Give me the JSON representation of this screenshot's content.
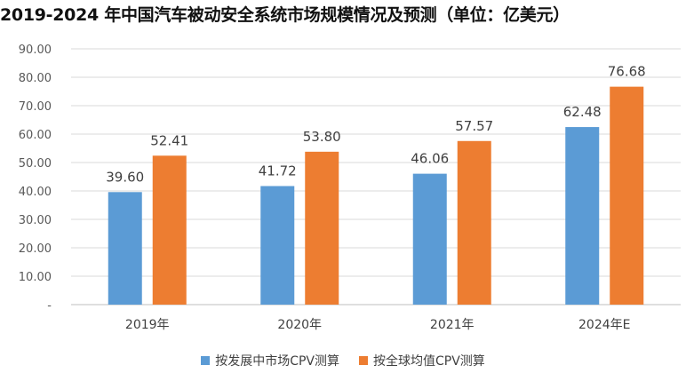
{
  "title": "2019-2024 年中国汽车被动安全系统市场规模情况及预测（单位：亿美元）",
  "colors": {
    "series1": "#5b9bd5",
    "series2": "#ed7d31",
    "grid": "#d9d9d9",
    "axis": "#bfbfbf"
  },
  "chart_data": {
    "type": "bar",
    "categories": [
      "2019年",
      "2020年",
      "2021年",
      "2024年E"
    ],
    "series": [
      {
        "name": "按发展中市场CPV测算",
        "values": [
          39.6,
          41.72,
          46.06,
          62.48
        ]
      },
      {
        "name": "按全球均值CPV测算",
        "values": [
          52.41,
          53.8,
          57.57,
          76.68
        ]
      }
    ],
    "ylim": [
      0,
      90
    ],
    "yticks": [
      "-",
      "10.00",
      "20.00",
      "30.00",
      "40.00",
      "50.00",
      "60.00",
      "70.00",
      "80.00",
      "90.00"
    ],
    "value_labels": [
      [
        "39.60",
        "41.72",
        "46.06",
        "62.48"
      ],
      [
        "52.41",
        "53.80",
        "57.57",
        "76.68"
      ]
    ],
    "grid": true,
    "legend_position": "bottom"
  }
}
